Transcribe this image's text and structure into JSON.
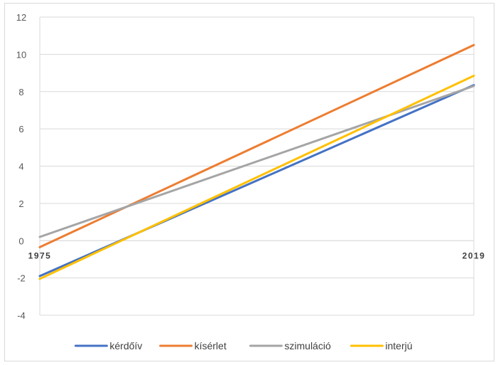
{
  "chart_data": {
    "type": "line",
    "title": "",
    "xlabel": "",
    "ylabel": "",
    "categories": [
      "1975",
      "2019"
    ],
    "ylim": [
      -4,
      12
    ],
    "yticks": [
      -4,
      -2,
      0,
      2,
      4,
      6,
      8,
      10,
      12
    ],
    "grid": true,
    "legend_position": "bottom",
    "series": [
      {
        "name": "kérdőív",
        "color": "#4472C4",
        "values": [
          -1.9,
          8.35
        ]
      },
      {
        "name": "kísérlet",
        "color": "#ED7D31",
        "values": [
          -0.35,
          10.5
        ]
      },
      {
        "name": "szimuláció",
        "color": "#A5A5A5",
        "values": [
          0.2,
          8.3
        ]
      },
      {
        "name": "interjú",
        "color": "#FFC000",
        "values": [
          -2.05,
          8.85
        ]
      }
    ]
  }
}
